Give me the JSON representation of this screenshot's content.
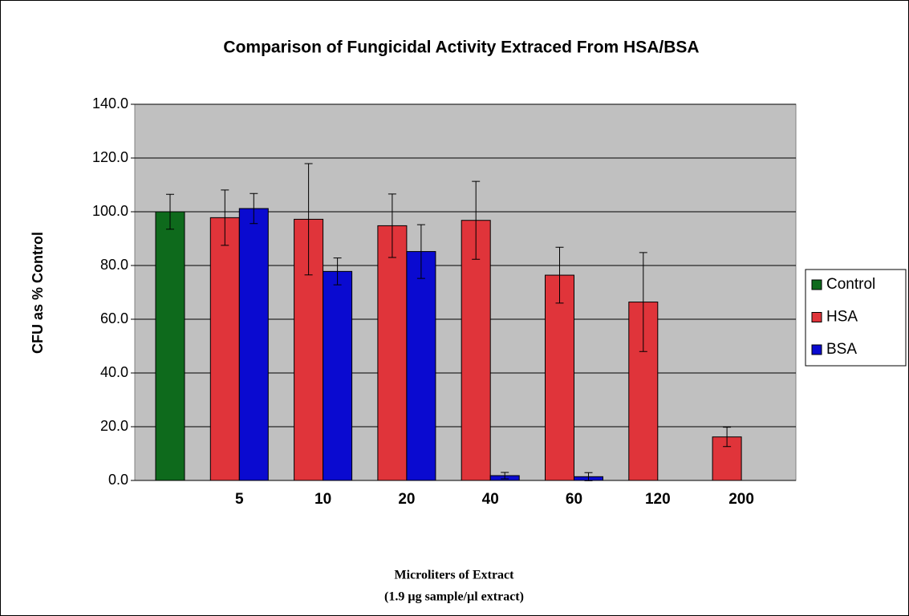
{
  "chart_data": {
    "type": "bar",
    "title": "Comparison of Fungicidal Activity Extraced From HSA/BSA",
    "y_label": "CFU as % Control",
    "x_label": [
      "Microliters of Extract",
      "(1.9 µg sample/µl extract)"
    ],
    "categories": [
      null,
      "5",
      "10",
      "20",
      "40",
      "60",
      "120",
      "200"
    ],
    "series": [
      {
        "name": "Control",
        "color": "#0e6a1c",
        "values": [
          100,
          null,
          null,
          null,
          null,
          null,
          null,
          null
        ],
        "errors": [
          6.5,
          null,
          null,
          null,
          null,
          null,
          null,
          null
        ]
      },
      {
        "name": "HSA",
        "color": "#e0343a",
        "values": [
          null,
          97.8,
          97.2,
          94.8,
          96.8,
          76.4,
          66.4,
          16.2
        ],
        "errors": [
          null,
          10.3,
          20.7,
          11.8,
          14.5,
          10.4,
          18.4,
          3.6
        ]
      },
      {
        "name": "BSA",
        "color": "#0a0ad0",
        "values": [
          null,
          101.2,
          77.8,
          85.2,
          1.8,
          1.4,
          null,
          null
        ],
        "errors": [
          null,
          5.6,
          5.0,
          10.0,
          1.2,
          1.5,
          null,
          null
        ]
      }
    ],
    "ylim": [
      0,
      140
    ],
    "yticks": [
      {
        "value": 0,
        "label": "0.0"
      },
      {
        "value": 20,
        "label": "20.0"
      },
      {
        "value": 40,
        "label": "40.0"
      },
      {
        "value": 60,
        "label": "60.0"
      },
      {
        "value": 80,
        "label": "80.0"
      },
      {
        "value": 100,
        "label": "100.0"
      },
      {
        "value": 120,
        "label": "120.0"
      },
      {
        "value": 140,
        "label": "140.0"
      }
    ],
    "grid": true,
    "legend": "right"
  }
}
